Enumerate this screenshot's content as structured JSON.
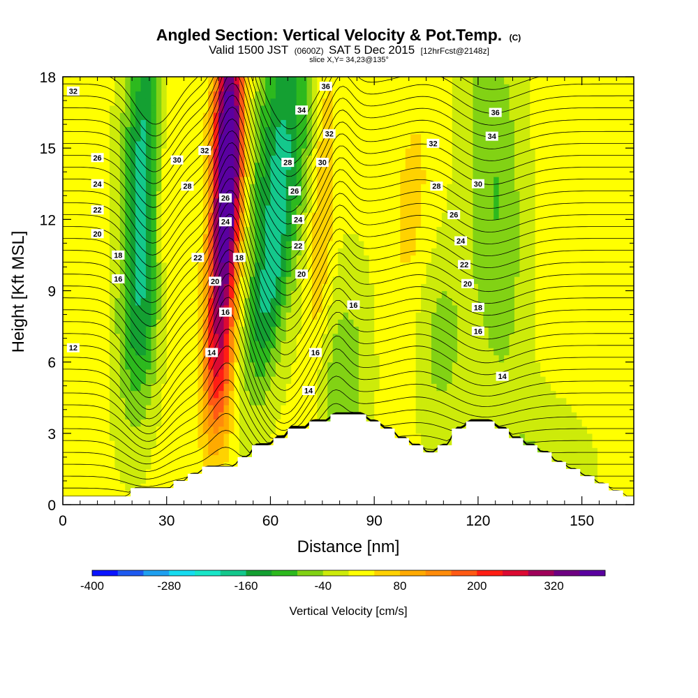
{
  "title": {
    "main": "Angled Section: Vertical Velocity & Pot.Temp.",
    "main_unit": "(C)",
    "valid_prefix": "Valid 1500 JST",
    "valid_z": "(0600Z)",
    "valid_date": "SAT 5 Dec 2015",
    "valid_fcst": "[12hrFcst@2148z]",
    "slice": "slice X,Y= 34,23@135°"
  },
  "chart_data": {
    "type": "heatmap",
    "xlabel": "Distance [nm]",
    "ylabel": "Height [Kft MSL]",
    "xlim": [
      0,
      165
    ],
    "ylim": [
      0,
      18
    ],
    "x_ticks": [
      "0",
      "30",
      "60",
      "90",
      "120",
      "150"
    ],
    "y_ticks": [
      "0",
      "3",
      "6",
      "9",
      "12",
      "15",
      "18"
    ],
    "colorbar": {
      "label": "Vertical Velocity [cm/s]",
      "tick_labels": [
        "-400",
        "-280",
        "-160",
        "-40",
        "80",
        "200",
        "320"
      ],
      "levels": [
        -400,
        -360,
        -320,
        -280,
        -240,
        -200,
        -160,
        -120,
        -80,
        -40,
        0,
        40,
        80,
        120,
        160,
        200,
        240,
        280,
        320,
        360,
        400
      ],
      "colors": [
        "#0a14ff",
        "#1e5af0",
        "#1fa0f0",
        "#16dcf0",
        "#19e6c8",
        "#14c88c",
        "#14a032",
        "#2db91e",
        "#82d214",
        "#cdeb0a",
        "#ffff00",
        "#ffd200",
        "#ffaa00",
        "#ff8c0a",
        "#ff5a14",
        "#ff1e14",
        "#dc0a32",
        "#a0005a",
        "#6e0082",
        "#5a00a0"
      ]
    },
    "terrain_top_kft": [
      0.35,
      0.35,
      0.35,
      0.35,
      0.35,
      0.35,
      0.35,
      0.35,
      0.35,
      0.35,
      0.7,
      0.7,
      0.7,
      0.7,
      0.7,
      0.7,
      1.0,
      1.0,
      1.3,
      1.3,
      1.6,
      1.6,
      1.6,
      1.6,
      1.6,
      2.0,
      2.0,
      2.5,
      2.5,
      2.5,
      2.8,
      2.8,
      3.2,
      3.2,
      3.2,
      3.5,
      3.5,
      3.5,
      3.8,
      3.8,
      3.8,
      3.8,
      3.8,
      3.5,
      3.5,
      3.2,
      3.2,
      2.8,
      2.8,
      2.5,
      2.5,
      2.2,
      2.2,
      2.5,
      2.5,
      3.2,
      3.2,
      3.5,
      3.5,
      3.5,
      3.5,
      3.2,
      3.2,
      2.8,
      2.8,
      2.5,
      2.5,
      2.2,
      2.2,
      1.8,
      1.8,
      1.5,
      1.5,
      1.2,
      1.2,
      0.9,
      0.9,
      0.6,
      0.6,
      0.35,
      0.35
    ],
    "velocity_features": [
      {
        "x_nm": 23,
        "z_kft": 14.5,
        "sigma_x_nm": 4,
        "sigma_z_kft": 4.5,
        "tilt_nm_per_kft": 0.25,
        "value_cm_s": -180
      },
      {
        "x_nm": 23,
        "z_kft": 7.5,
        "sigma_x_nm": 4.5,
        "sigma_z_kft": 3,
        "tilt_nm_per_kft": 0.4,
        "value_cm_s": -110
      },
      {
        "x_nm": 30,
        "z_kft": 13,
        "sigma_x_nm": 3,
        "sigma_z_kft": 5,
        "tilt_nm_per_kft": 0.2,
        "value_cm_s": 60
      },
      {
        "x_nm": 48,
        "z_kft": 15.5,
        "sigma_x_nm": 3,
        "sigma_z_kft": 3.5,
        "tilt_nm_per_kft": 0.1,
        "value_cm_s": 380
      },
      {
        "x_nm": 46,
        "z_kft": 10,
        "sigma_x_nm": 3,
        "sigma_z_kft": 4,
        "tilt_nm_per_kft": 0.3,
        "value_cm_s": 240
      },
      {
        "x_nm": 45,
        "z_kft": 5.5,
        "sigma_x_nm": 3,
        "sigma_z_kft": 2.5,
        "tilt_nm_per_kft": 0.2,
        "value_cm_s": 110
      },
      {
        "x_nm": 63,
        "z_kft": 15,
        "sigma_x_nm": 6,
        "sigma_z_kft": 4.5,
        "tilt_nm_per_kft": 0.6,
        "value_cm_s": -170
      },
      {
        "x_nm": 59,
        "z_kft": 8.5,
        "sigma_x_nm": 3.5,
        "sigma_z_kft": 3,
        "tilt_nm_per_kft": 0.8,
        "value_cm_s": -120
      },
      {
        "x_nm": 75,
        "z_kft": 13,
        "sigma_x_nm": 2.5,
        "sigma_z_kft": 5,
        "tilt_nm_per_kft": 0.3,
        "value_cm_s": 80
      },
      {
        "x_nm": 81,
        "z_kft": 5,
        "sigma_x_nm": 5,
        "sigma_z_kft": 3,
        "tilt_nm_per_kft": 0.3,
        "value_cm_s": -80
      },
      {
        "x_nm": 101,
        "z_kft": 11,
        "sigma_x_nm": 5,
        "sigma_z_kft": 5,
        "tilt_nm_per_kft": 0.2,
        "value_cm_s": 50
      },
      {
        "x_nm": 108,
        "z_kft": 7,
        "sigma_x_nm": 6,
        "sigma_z_kft": 3,
        "tilt_nm_per_kft": 0,
        "value_cm_s": -70
      },
      {
        "x_nm": 125,
        "z_kft": 13,
        "sigma_x_nm": 6,
        "sigma_z_kft": 6,
        "tilt_nm_per_kft": -0.3,
        "value_cm_s": -90
      },
      {
        "x_nm": 150,
        "z_kft": 10,
        "sigma_x_nm": 10,
        "sigma_z_kft": 6,
        "tilt_nm_per_kft": 0,
        "value_cm_s": 25
      },
      {
        "x_nm": 140,
        "z_kft": 2,
        "sigma_x_nm": 10,
        "sigma_z_kft": 2,
        "tilt_nm_per_kft": 0,
        "value_cm_s": -50
      },
      {
        "x_nm": 5,
        "z_kft": 9,
        "sigma_x_nm": 5,
        "sigma_z_kft": 8,
        "tilt_nm_per_kft": 0,
        "value_cm_s": 25
      }
    ],
    "isentrope_labels": [
      {
        "text": "32",
        "x_nm": 3,
        "z_kft": 17.4
      },
      {
        "text": "26",
        "x_nm": 10,
        "z_kft": 14.6
      },
      {
        "text": "24",
        "x_nm": 10,
        "z_kft": 13.5
      },
      {
        "text": "22",
        "x_nm": 10,
        "z_kft": 12.4
      },
      {
        "text": "20",
        "x_nm": 10,
        "z_kft": 11.4
      },
      {
        "text": "18",
        "x_nm": 16,
        "z_kft": 10.5
      },
      {
        "text": "16",
        "x_nm": 16,
        "z_kft": 9.5
      },
      {
        "text": "12",
        "x_nm": 3,
        "z_kft": 6.6
      },
      {
        "text": "30",
        "x_nm": 33,
        "z_kft": 14.5
      },
      {
        "text": "28",
        "x_nm": 36,
        "z_kft": 13.4
      },
      {
        "text": "32",
        "x_nm": 41,
        "z_kft": 14.9
      },
      {
        "text": "22",
        "x_nm": 39,
        "z_kft": 10.4
      },
      {
        "text": "20",
        "x_nm": 44,
        "z_kft": 9.4
      },
      {
        "text": "14",
        "x_nm": 43,
        "z_kft": 6.4
      },
      {
        "text": "16",
        "x_nm": 47,
        "z_kft": 8.1
      },
      {
        "text": "18",
        "x_nm": 51,
        "z_kft": 10.4
      },
      {
        "text": "24",
        "x_nm": 47,
        "z_kft": 11.9
      },
      {
        "text": "26",
        "x_nm": 47,
        "z_kft": 12.9
      },
      {
        "text": "34",
        "x_nm": 69,
        "z_kft": 16.6
      },
      {
        "text": "36",
        "x_nm": 76,
        "z_kft": 17.6
      },
      {
        "text": "32",
        "x_nm": 77,
        "z_kft": 15.6
      },
      {
        "text": "28",
        "x_nm": 65,
        "z_kft": 14.4
      },
      {
        "text": "30",
        "x_nm": 75,
        "z_kft": 14.4
      },
      {
        "text": "26",
        "x_nm": 67,
        "z_kft": 13.2
      },
      {
        "text": "24",
        "x_nm": 68,
        "z_kft": 12.0
      },
      {
        "text": "22",
        "x_nm": 68,
        "z_kft": 10.9
      },
      {
        "text": "20",
        "x_nm": 69,
        "z_kft": 9.7
      },
      {
        "text": "16",
        "x_nm": 84,
        "z_kft": 8.4
      },
      {
        "text": "16",
        "x_nm": 73,
        "z_kft": 6.4
      },
      {
        "text": "14",
        "x_nm": 71,
        "z_kft": 4.8
      },
      {
        "text": "36",
        "x_nm": 125,
        "z_kft": 16.5
      },
      {
        "text": "34",
        "x_nm": 124,
        "z_kft": 15.5
      },
      {
        "text": "32",
        "x_nm": 107,
        "z_kft": 15.2
      },
      {
        "text": "28",
        "x_nm": 108,
        "z_kft": 13.4
      },
      {
        "text": "30",
        "x_nm": 120,
        "z_kft": 13.5
      },
      {
        "text": "26",
        "x_nm": 113,
        "z_kft": 12.2
      },
      {
        "text": "24",
        "x_nm": 115,
        "z_kft": 11.1
      },
      {
        "text": "22",
        "x_nm": 116,
        "z_kft": 10.1
      },
      {
        "text": "20",
        "x_nm": 117,
        "z_kft": 9.3
      },
      {
        "text": "18",
        "x_nm": 120,
        "z_kft": 8.3
      },
      {
        "text": "16",
        "x_nm": 120,
        "z_kft": 7.3
      },
      {
        "text": "14",
        "x_nm": 127,
        "z_kft": 5.4
      }
    ]
  }
}
